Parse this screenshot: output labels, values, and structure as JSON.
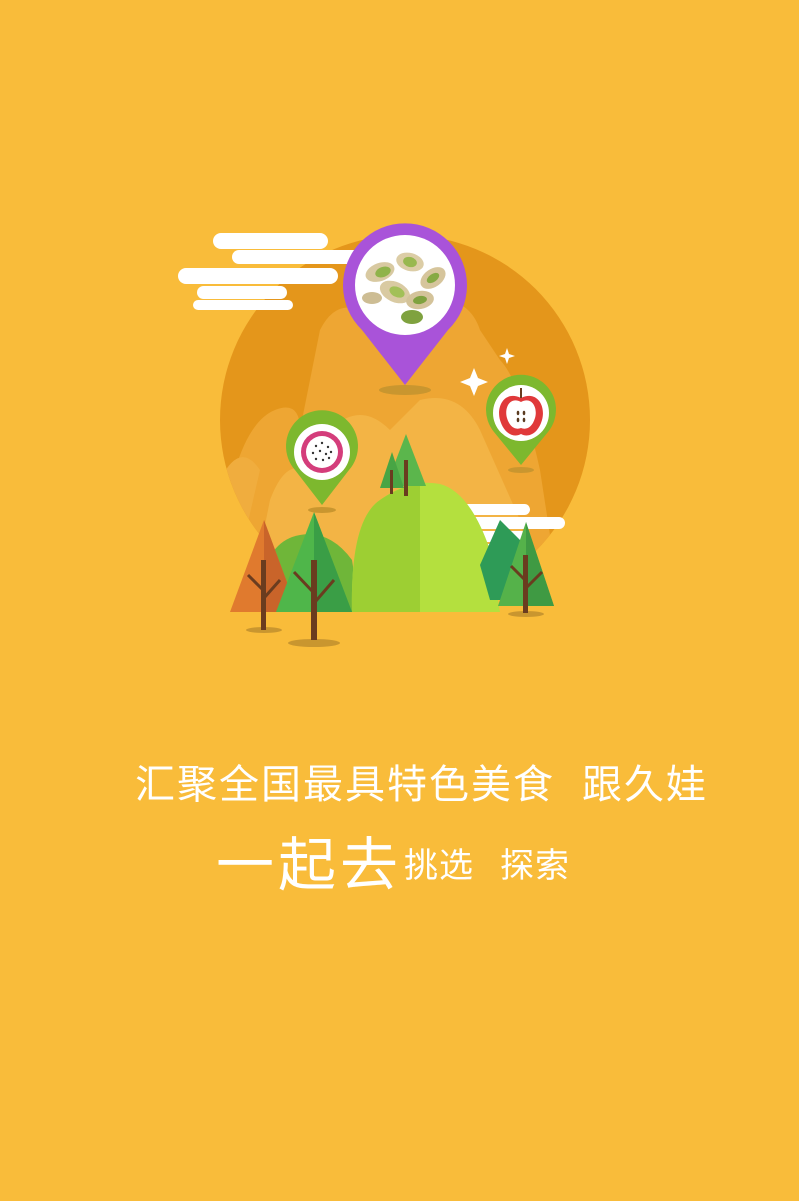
{
  "splash": {
    "slogan_line1_part1": "汇聚全国最具特色美食",
    "slogan_line1_part2": "跟久娃",
    "slogan_line2_big": "一起去",
    "slogan_line2_small1": "挑选",
    "slogan_line2_small2": "探索"
  },
  "colors": {
    "background": "#F9BC3A",
    "sun": "#E4961B",
    "mountain_back": "#EC9F2A",
    "pin_purple": "#A953D9",
    "pin_green": "#7DB82E",
    "hill_green": "#A8D63C",
    "text": "#FFFFFF"
  },
  "icons": {
    "main_pin": "pistachio-pin-icon",
    "left_pin": "dragon-fruit-pin-icon",
    "right_pin": "apple-pin-icon"
  }
}
